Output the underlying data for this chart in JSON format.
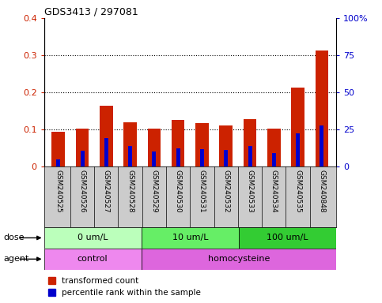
{
  "title": "GDS3413 / 297081",
  "samples": [
    "GSM240525",
    "GSM240526",
    "GSM240527",
    "GSM240528",
    "GSM240529",
    "GSM240530",
    "GSM240531",
    "GSM240532",
    "GSM240533",
    "GSM240534",
    "GSM240535",
    "GSM240848"
  ],
  "red_values": [
    0.095,
    0.102,
    0.165,
    0.12,
    0.103,
    0.126,
    0.118,
    0.11,
    0.127,
    0.102,
    0.213,
    0.312
  ],
  "blue_values": [
    0.02,
    0.043,
    0.077,
    0.055,
    0.04,
    0.05,
    0.048,
    0.045,
    0.055,
    0.037,
    0.09,
    0.11
  ],
  "ylim_left": [
    0,
    0.4
  ],
  "ylim_right": [
    0,
    100
  ],
  "yticks_left": [
    0,
    0.1,
    0.2,
    0.3,
    0.4
  ],
  "yticks_right": [
    0,
    25,
    50,
    75,
    100
  ],
  "ytick_labels_left": [
    "0",
    "0.1",
    "0.2",
    "0.3",
    "0.4"
  ],
  "ytick_labels_right": [
    "0",
    "25",
    "50",
    "75",
    "100%"
  ],
  "dose_groups": [
    {
      "label": "0 um/L",
      "start": 0,
      "end": 4,
      "color": "#bbffbb"
    },
    {
      "label": "10 um/L",
      "start": 4,
      "end": 8,
      "color": "#66ee66"
    },
    {
      "label": "100 um/L",
      "start": 8,
      "end": 12,
      "color": "#33cc33"
    }
  ],
  "agent_groups": [
    {
      "label": "control",
      "start": 0,
      "end": 4,
      "color": "#ee88ee"
    },
    {
      "label": "homocysteine",
      "start": 4,
      "end": 12,
      "color": "#dd66dd"
    }
  ],
  "bar_width": 0.55,
  "red_color": "#cc2200",
  "blue_color": "#0000cc",
  "grid_color": "#000000",
  "bg_color": "#ffffff",
  "left_tick_color": "#cc2200",
  "right_tick_color": "#0000cc",
  "legend_red_label": "transformed count",
  "legend_blue_label": "percentile rank within the sample",
  "dose_label": "dose",
  "agent_label": "agent",
  "xlabel_area_color": "#cccccc"
}
